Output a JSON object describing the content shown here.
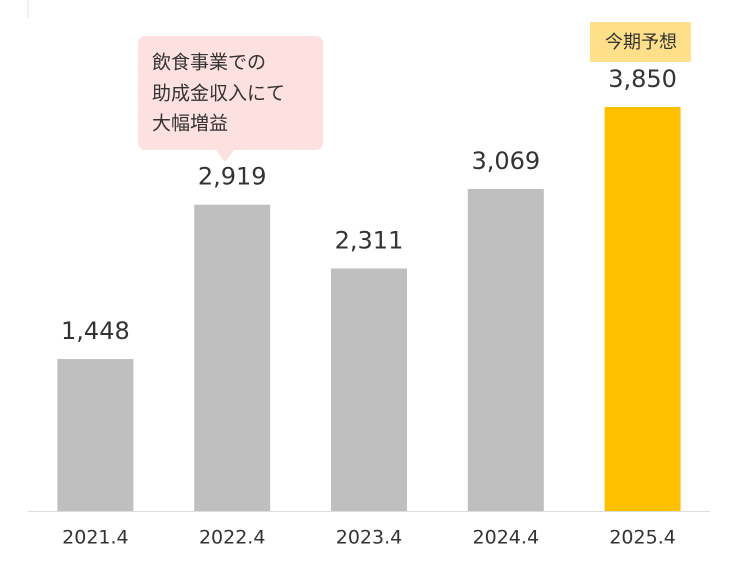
{
  "chart_data": {
    "type": "bar",
    "categories": [
      "2021.4",
      "2022.4",
      "2023.4",
      "2024.4",
      "2025.4"
    ],
    "values": [
      1448,
      2919,
      2311,
      3069,
      3850
    ],
    "value_labels": [
      "1,448",
      "2,919",
      "2,311",
      "3,069",
      "3,850"
    ],
    "colors": [
      "#bfbfbf",
      "#bfbfbf",
      "#bfbfbf",
      "#bfbfbf",
      "#ffc000"
    ],
    "callout": {
      "lines": [
        "飲食事業での",
        "助成金収入にて",
        "大幅増益"
      ]
    },
    "badge": "今期予想"
  }
}
